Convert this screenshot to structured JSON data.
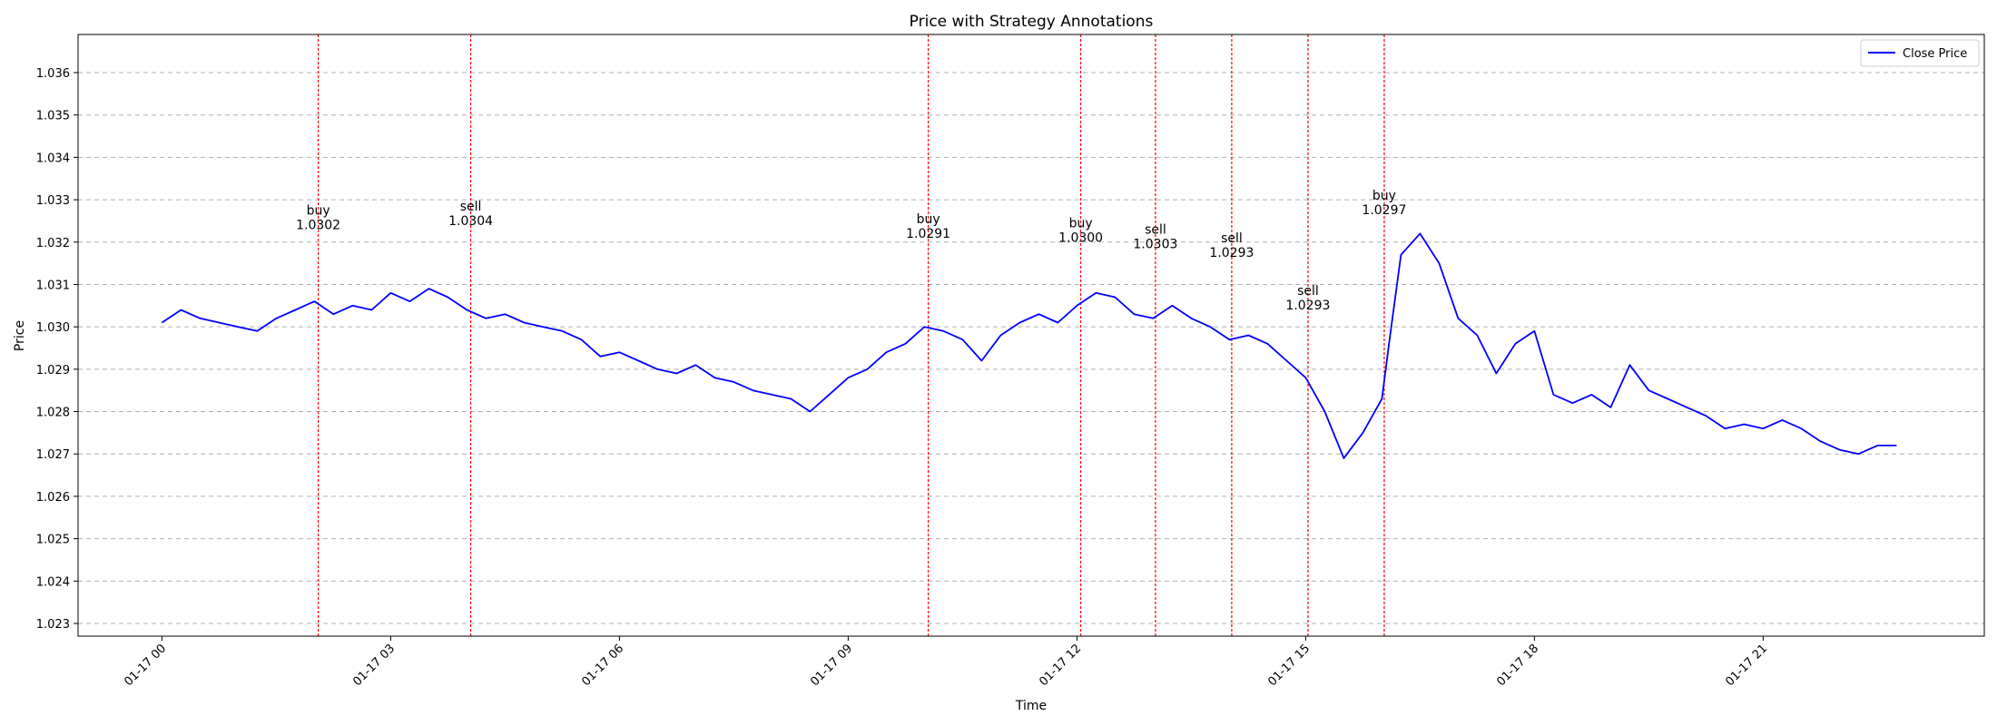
{
  "chart_data": {
    "type": "line",
    "title": "Price with Strategy Annotations",
    "xlabel": "Time",
    "ylabel": "Price",
    "x_ticks": [
      "01-17 00",
      "01-17 03",
      "01-17 06",
      "01-17 09",
      "01-17 12",
      "01-17 15",
      "01-17 18",
      "01-17 21"
    ],
    "x_tick_hours": [
      0,
      3,
      6,
      9,
      12,
      15,
      18,
      21
    ],
    "y_ticks": [
      "1.023",
      "1.024",
      "1.025",
      "1.026",
      "1.027",
      "1.028",
      "1.029",
      "1.030",
      "1.031",
      "1.032",
      "1.033",
      "1.034",
      "1.035",
      "1.036"
    ],
    "xlim_hours": [
      -1.1,
      23.9
    ],
    "ylim": [
      1.0227,
      1.0369
    ],
    "grid": "y-dashed",
    "legend": {
      "position": "top-right",
      "entries": [
        "Close Price"
      ]
    },
    "colors": {
      "series": "#0000ff",
      "annotation": "#ff0000",
      "grid": "#b0b0b0"
    },
    "series": [
      {
        "name": "Close Price",
        "x_hours": [
          0,
          0.25,
          0.5,
          0.75,
          1.0,
          1.25,
          1.5,
          1.75,
          2.0,
          2.25,
          2.5,
          2.75,
          3.0,
          3.25,
          3.5,
          3.75,
          4.0,
          4.25,
          4.5,
          4.75,
          5.0,
          5.25,
          5.5,
          5.75,
          6.0,
          6.25,
          6.5,
          6.75,
          7.0,
          7.25,
          7.5,
          7.75,
          8.0,
          8.25,
          8.5,
          8.75,
          9.0,
          9.25,
          9.5,
          9.75,
          10.0,
          10.25,
          10.5,
          10.75,
          11.0,
          11.25,
          11.5,
          11.75,
          12.0,
          12.25,
          12.5,
          12.75,
          13.0,
          13.25,
          13.5,
          13.75,
          14.0,
          14.25,
          14.5,
          14.75,
          15.0,
          15.25,
          15.5,
          15.75,
          16.0,
          16.1,
          16.25,
          16.5,
          16.75,
          17.0,
          17.25,
          17.5,
          17.75,
          18.0,
          18.25,
          18.5,
          18.75,
          19.0,
          19.25,
          19.5,
          19.75,
          20.0,
          20.25,
          20.5,
          20.75,
          21.0,
          21.25,
          21.5,
          21.75,
          22.0,
          22.25,
          22.5,
          22.75
        ],
        "y": [
          1.0301,
          1.0304,
          1.0302,
          1.0301,
          1.03,
          1.0299,
          1.0302,
          1.0304,
          1.0306,
          1.0303,
          1.0305,
          1.0304,
          1.0308,
          1.0306,
          1.0309,
          1.0307,
          1.0304,
          1.0302,
          1.0303,
          1.0301,
          1.03,
          1.0299,
          1.0297,
          1.0293,
          1.0294,
          1.0292,
          1.029,
          1.0289,
          1.0291,
          1.0288,
          1.0287,
          1.0285,
          1.0284,
          1.0283,
          1.028,
          1.0284,
          1.0288,
          1.029,
          1.0294,
          1.0296,
          1.03,
          1.0299,
          1.0297,
          1.0292,
          1.0298,
          1.0301,
          1.0303,
          1.0301,
          1.0305,
          1.0308,
          1.0307,
          1.0303,
          1.0302,
          1.0305,
          1.0302,
          1.03,
          1.0297,
          1.0298,
          1.0296,
          1.0292,
          1.0288,
          1.028,
          1.0269,
          1.0275,
          1.0283,
          1.0297,
          1.0317,
          1.0322,
          1.0315,
          1.0302,
          1.0298,
          1.0289,
          1.0296,
          1.0299,
          1.0284,
          1.0282,
          1.0284,
          1.0281,
          1.0291,
          1.0285,
          1.0283,
          1.0281,
          1.0279,
          1.0276,
          1.0277,
          1.0276,
          1.0278,
          1.0276,
          1.0273,
          1.0271,
          1.027,
          1.0272,
          1.0272
        ]
      }
    ],
    "annotations": [
      {
        "x_hours": 2.05,
        "action": "buy",
        "price": "1.0302",
        "label_y": 1.03265
      },
      {
        "x_hours": 4.05,
        "action": "sell",
        "price": "1.0304",
        "label_y": 1.03275
      },
      {
        "x_hours": 10.05,
        "action": "buy",
        "price": "1.0291",
        "label_y": 1.03245
      },
      {
        "x_hours": 12.05,
        "action": "buy",
        "price": "1.0300",
        "label_y": 1.03235
      },
      {
        "x_hours": 13.03,
        "action": "sell",
        "price": "1.0303",
        "label_y": 1.0322
      },
      {
        "x_hours": 14.03,
        "action": "sell",
        "price": "1.0293",
        "label_y": 1.032
      },
      {
        "x_hours": 15.03,
        "action": "sell",
        "price": "1.0293",
        "label_y": 1.03075
      },
      {
        "x_hours": 16.03,
        "action": "buy",
        "price": "1.0297",
        "label_y": 1.033
      }
    ]
  }
}
